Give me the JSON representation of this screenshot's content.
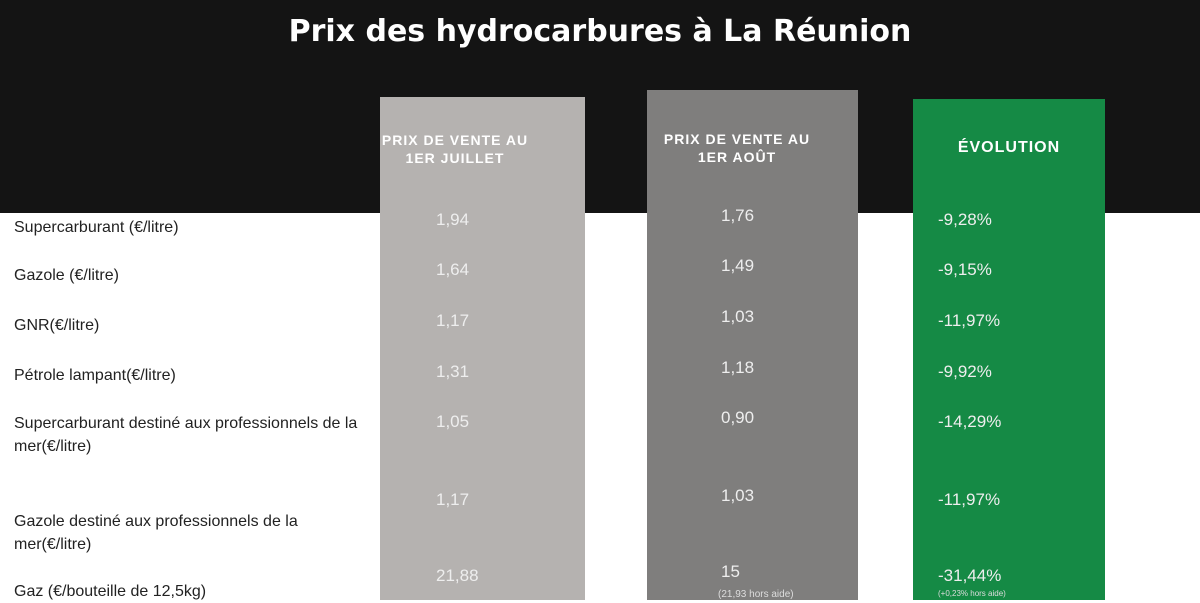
{
  "title": "Prix des hydrocarbures à La Réunion",
  "chart_data": {
    "type": "table",
    "title": "Prix des hydrocarbures à La Réunion",
    "columns": [
      "PRIX DE VENTE AU 1ER JUILLET",
      "PRIX DE VENTE AU 1ER AOÛT",
      "ÉVOLUTION"
    ],
    "column_colors": [
      "#b5b2b0",
      "#7f7e7d",
      "#158a45"
    ],
    "rows": [
      {
        "label": "Supercarburant (€/litre)",
        "juillet": "1,94",
        "aout": "1,76",
        "evolution": "-9,28%"
      },
      {
        "label": "Gazole (€/litre)",
        "juillet": "1,64",
        "aout": "1,49",
        "evolution": "-9,15%"
      },
      {
        "label": "GNR(€/litre)",
        "juillet": "1,17",
        "aout": "1,03",
        "evolution": "-11,97%"
      },
      {
        "label": "Pétrole lampant(€/litre)",
        "juillet": "1,31",
        "aout": "1,18",
        "evolution": "-9,92%"
      },
      {
        "label": "Supercarburant destiné aux professionnels de la mer(€/litre)",
        "juillet": "1,05",
        "aout": "0,90",
        "evolution": "-14,29%"
      },
      {
        "label": "Gazole destiné aux professionnels de la mer(€/litre)",
        "juillet": "1,17",
        "aout": "1,03",
        "evolution": "-11,97%"
      },
      {
        "label": "Gaz (€/bouteille de 12,5kg)",
        "juillet": "21,88",
        "aout": "15",
        "aout_note": "(21,93 hors aide)",
        "evolution": "-31,44%",
        "evolution_note": "(+0,23% hors aide)"
      }
    ]
  }
}
